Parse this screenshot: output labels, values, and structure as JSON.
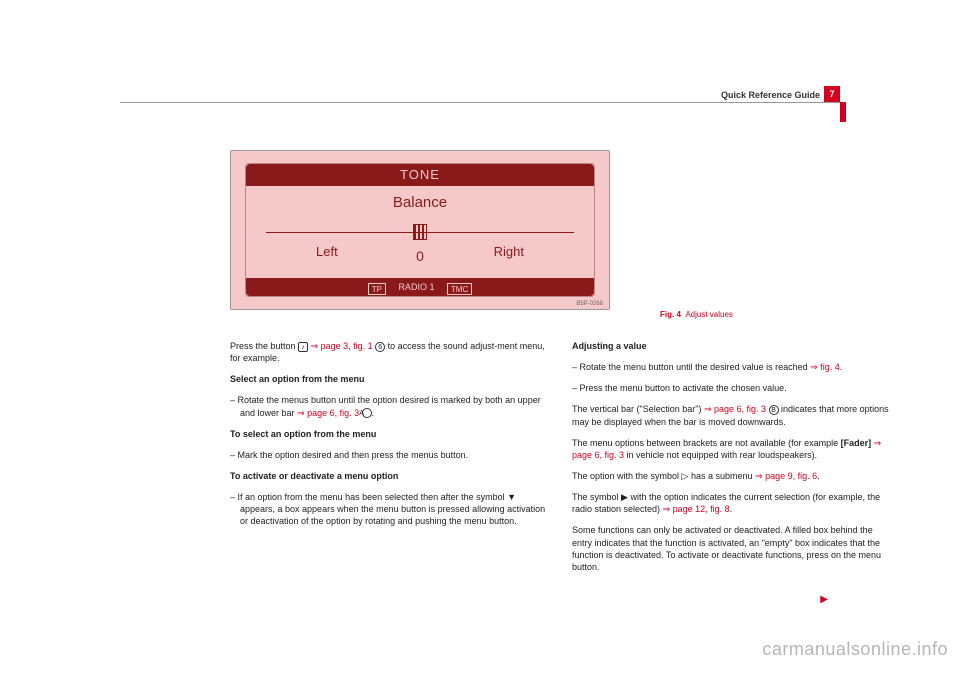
{
  "header": {
    "title": "Quick Reference Guide",
    "page_number": "7"
  },
  "display": {
    "title": "TONE",
    "mode": "Balance",
    "left_label": "Left",
    "right_label": "Right",
    "value": "0",
    "tp": "TP",
    "station": "RADIO 1",
    "tmc": "TMC",
    "code": "B5P-0268"
  },
  "fig_caption": {
    "num": "Fig. 4",
    "text": "Adjust values"
  },
  "left_col": {
    "p1a": "Press the button ",
    "p1_ref": "⇒ page 3, fig. 1 ",
    "p1_circ": "6",
    "p1b": " to access the sound adjust-ment menu, for example.",
    "h1": "Select an option from the menu",
    "b1a": "–  Rotate the menus button until the option desired is marked by both an upper and lower bar ",
    "b1_ref": "⇒ page 6, fig. 3 ",
    "b1_circ": "A",
    "b1b": ".",
    "h2": "To select an option from the menu",
    "b2": "–  Mark the option desired and then press the menus button.",
    "h3": "To activate or deactivate a menu option",
    "b3": "–  If an option from the menu has been selected then after the symbol ▼ appears, a box appears when the menu button is pressed allowing activation or deactivation of the option by rotating and pushing the menu button."
  },
  "right_col": {
    "h1": "Adjusting a value",
    "b1a": "–  Rotate the menu button until the desired value is reached ",
    "b1_ref": "⇒ fig. 4",
    "b1b": ".",
    "b2": "–  Press the menu button to activate the chosen value.",
    "p1a": "The vertical bar (\"Selection bar\") ",
    "p1_ref": "⇒ page 6, fig. 3 ",
    "p1_circ": "B",
    "p1b": " indicates that more options may be displayed when the bar is moved downwards.",
    "p2a": "The menu options between brackets are not available (for example ",
    "p2_bold": "[Fader]",
    "p2_ref": " ⇒ page 6, fig. 3",
    "p2b": " in vehicle not equipped with rear loudspeakers).",
    "p3a": "The option with the symbol ▷ has a submenu ",
    "p3_ref": "⇒ page 9, fig. 6",
    "p3b": ".",
    "p4a": "The symbol ▶ with the option indicates the current selection (for example, the radio station selected) ",
    "p4_ref": "⇒ page 12, fig. 8",
    "p4b": ".",
    "p5": "Some functions can only be activated or deactivated. A filled box behind the entry indicates that the function is activated, an \"empty\" box indicates that the function is deactivated. To activate or deactivate functions, press on the menu button."
  },
  "watermark": "carmanualsonline.info",
  "note_icon": "♪"
}
